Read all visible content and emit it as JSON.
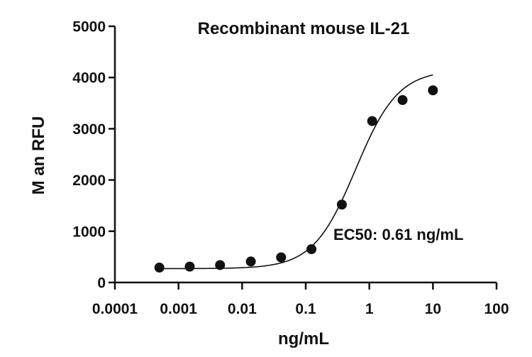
{
  "chart_data": {
    "type": "scatter",
    "title": "Recombinant mouse IL-21",
    "xlabel": "ng/mL",
    "ylabel": "M  an RFU",
    "xscale": "log",
    "xlim": [
      0.0001,
      100
    ],
    "ylim": [
      0,
      5000
    ],
    "x_ticks": [
      0.0001,
      0.001,
      0.01,
      0.1,
      1,
      10,
      100
    ],
    "x_tick_labels": [
      "0.0001",
      "0.001",
      "0.01",
      "0.1",
      "1",
      "10",
      "100"
    ],
    "y_ticks": [
      0,
      1000,
      2000,
      3000,
      4000,
      5000
    ],
    "y_tick_labels": [
      "0",
      "1000",
      "2000",
      "3000",
      "4000",
      "5000"
    ],
    "grid": false,
    "series": [
      {
        "name": "IL-21",
        "x": [
          0.0005,
          0.0015,
          0.0045,
          0.0137,
          0.041,
          0.123,
          0.37,
          1.11,
          3.33,
          10
        ],
        "y": [
          290,
          310,
          340,
          410,
          490,
          650,
          1520,
          3150,
          3560,
          3750
        ]
      }
    ],
    "fit": {
      "model": "4PL",
      "bottom": 270,
      "top": 4150,
      "ec50": 0.61,
      "hill": 1.3,
      "x_range": [
        0.0005,
        10
      ]
    },
    "annotation": "EC50: 0.61 ng/mL",
    "colors": {
      "points": "#111111",
      "line": "#111111",
      "axis": "#111111"
    }
  }
}
